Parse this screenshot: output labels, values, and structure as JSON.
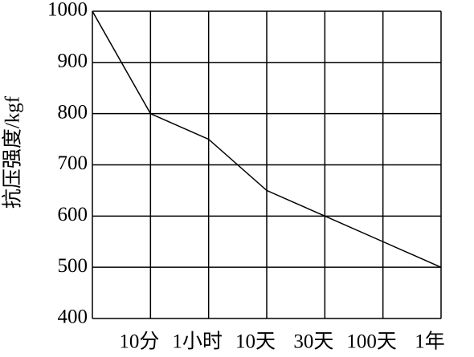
{
  "chart_data": {
    "type": "line",
    "y_label": "抗压强度/kgf",
    "categories": [
      null,
      "10分",
      "1小时",
      "10天",
      "30天",
      "100天",
      "1年"
    ],
    "values": [
      1000,
      800,
      750,
      650,
      600,
      550,
      500
    ],
    "color": "#000000",
    "ylim": [
      400,
      1000
    ],
    "yticks": [
      400,
      500,
      600,
      700,
      800,
      900,
      1000
    ],
    "grid": true
  }
}
